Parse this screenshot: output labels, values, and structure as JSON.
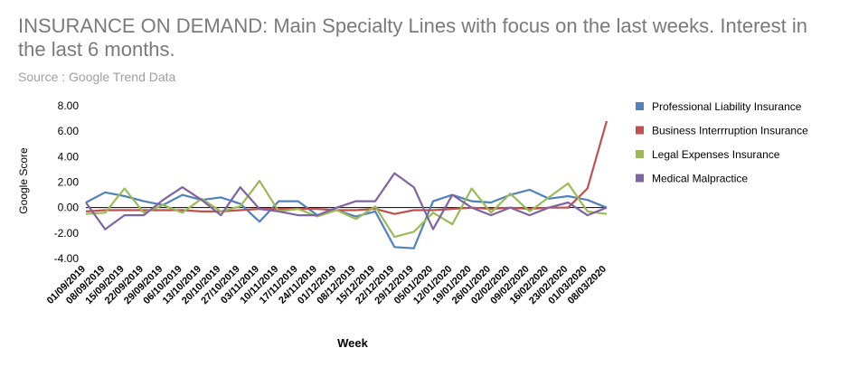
{
  "header": {
    "title": "INSURANCE ON DEMAND: Main Specialty Lines with focus on the last weeks. Interest in the last 6 months.",
    "source": "Source : Google Trend Data"
  },
  "chart_data": {
    "type": "line",
    "title": "INSURANCE ON DEMAND: Main Specialty Lines with focus on the last weeks. Interest in the last 6 months.",
    "xlabel": "Week",
    "ylabel": "Google Score",
    "ylim": [
      -4,
      8
    ],
    "yticks": [
      "8.00",
      "6.00",
      "4.00",
      "2.00",
      "0.00",
      "-2.00",
      "-4.00"
    ],
    "grid": false,
    "legend_position": "right",
    "x": [
      "01/09/2019",
      "08/09/2019",
      "15/09/2019",
      "22/09/2019",
      "29/09/2019",
      "06/10/2019",
      "13/10/2019",
      "20/10/2019",
      "27/10/2019",
      "03/11/2019",
      "10/11/2019",
      "17/11/2019",
      "24/11/2019",
      "01/12/2019",
      "08/12/2019",
      "15/12/2019",
      "22/12/2019",
      "29/12/2019",
      "05/01/2020",
      "12/01/2020",
      "19/01/2020",
      "26/01/2020",
      "02/02/2020",
      "09/02/2020",
      "16/02/2020",
      "23/02/2020",
      "01/03/2020",
      "08/03/2020"
    ],
    "series": [
      {
        "name": "Professional Liability Insurance",
        "color": "#4f81bd",
        "values": [
          0.4,
          1.2,
          0.9,
          0.5,
          0.2,
          1.0,
          0.6,
          0.8,
          0.3,
          -1.1,
          0.5,
          0.5,
          -0.6,
          -0.2,
          -0.7,
          -0.3,
          -3.1,
          -3.2,
          0.5,
          1.0,
          0.5,
          0.4,
          1.0,
          1.4,
          0.7,
          0.9,
          0.6,
          0.0
        ]
      },
      {
        "name": "Business Interrruption Insurance",
        "color": "#c0504d",
        "values": [
          -0.3,
          -0.2,
          -0.2,
          -0.2,
          -0.2,
          -0.2,
          -0.3,
          -0.3,
          -0.2,
          -0.1,
          -0.1,
          -0.1,
          -0.1,
          -0.2,
          -0.2,
          -0.1,
          -0.5,
          -0.2,
          -0.2,
          -0.1,
          0.0,
          -0.1,
          0.0,
          -0.1,
          0.0,
          0.0,
          1.5,
          6.8
        ]
      },
      {
        "name": "Legal Expenses Insurance",
        "color": "#9bbb59",
        "values": [
          -0.5,
          -0.4,
          1.5,
          -0.4,
          0.2,
          -0.4,
          0.7,
          -0.3,
          0.1,
          2.1,
          -0.3,
          -0.1,
          -0.7,
          -0.2,
          -0.9,
          0.1,
          -2.3,
          -1.9,
          -0.4,
          -1.3,
          1.5,
          -0.4,
          1.1,
          -0.3,
          0.8,
          1.9,
          -0.3,
          -0.5
        ]
      },
      {
        "name": "Medical Malpractice",
        "color": "#8064a2",
        "values": [
          0.4,
          -1.7,
          -0.6,
          -0.6,
          0.6,
          1.6,
          0.6,
          -0.6,
          1.6,
          -0.1,
          -0.3,
          -0.6,
          -0.6,
          0.0,
          0.5,
          0.5,
          2.7,
          1.6,
          -1.7,
          1.0,
          0.0,
          -0.6,
          0.0,
          -0.6,
          0.0,
          0.4,
          -0.6,
          0.0
        ]
      }
    ]
  }
}
